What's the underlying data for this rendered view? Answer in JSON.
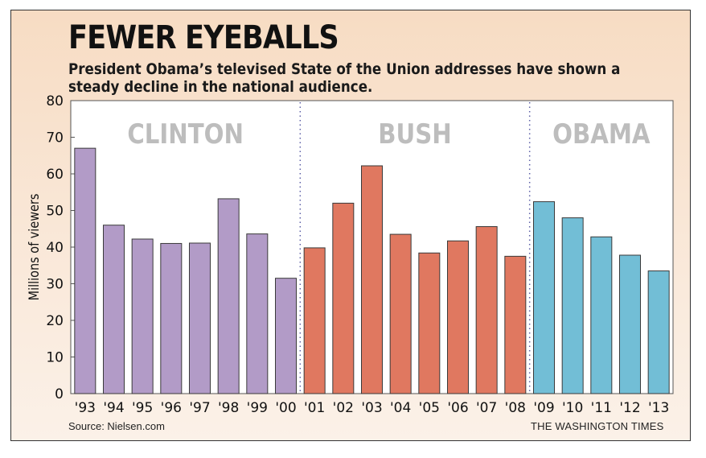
{
  "chart_data": {
    "type": "bar",
    "title": "FEWER EYEBALLS",
    "subtitle": "President Obama’s televised State of the Union addresses have shown a steady decline in the national audience.",
    "ylabel": "Millions of viewers",
    "xlabel": "",
    "ylim": [
      0,
      80
    ],
    "yticks": [
      0,
      10,
      20,
      30,
      40,
      50,
      60,
      70,
      80
    ],
    "grid": false,
    "categories": [
      "'93",
      "'94",
      "'95",
      "'96",
      "'97",
      "'98",
      "'99",
      "'00",
      "'01",
      "'02",
      "'03",
      "'04",
      "'05",
      "'06",
      "'07",
      "'08",
      "'09",
      "'10",
      "'11",
      "'12",
      "'13"
    ],
    "values": [
      67,
      46,
      42.2,
      41,
      41.1,
      53.2,
      43.6,
      31.5,
      39.8,
      52,
      62.2,
      43.5,
      38.4,
      41.7,
      45.6,
      37.5,
      52.4,
      48,
      42.8,
      37.8,
      33.5
    ],
    "groups": [
      {
        "name": "CLINTON",
        "start": 0,
        "end": 7,
        "color": "#b29bc7"
      },
      {
        "name": "BUSH",
        "start": 8,
        "end": 15,
        "color": "#e07860"
      },
      {
        "name": "OBAMA",
        "start": 16,
        "end": 20,
        "color": "#72bed6"
      }
    ]
  },
  "footer": {
    "source": "Source: Nielsen.com",
    "credit": "THE WASHINGTON TIMES"
  }
}
